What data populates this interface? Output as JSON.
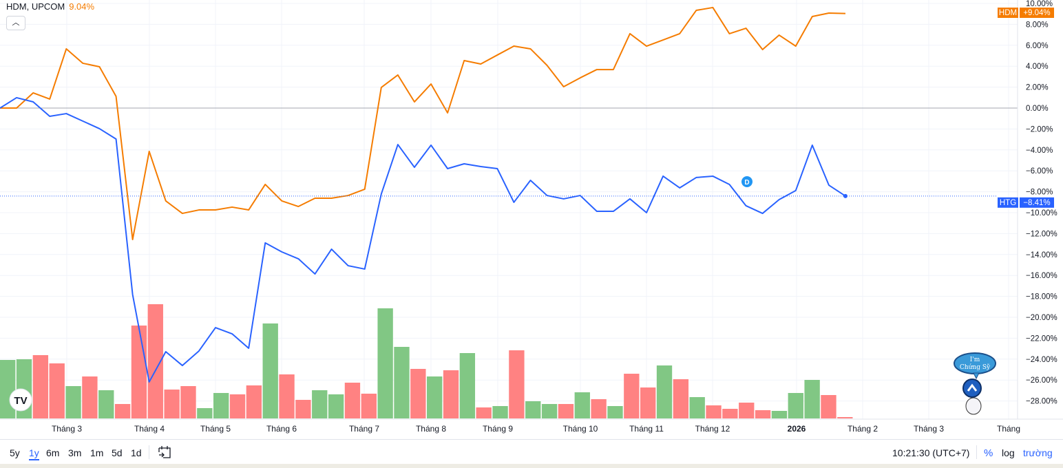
{
  "legend": {
    "symbol": "HDM, UPCOM",
    "change": "9.04%"
  },
  "collapse_icon": "chevron-up-icon",
  "colors": {
    "hdm": "#f57c00",
    "htg": "#2962ff",
    "vol_up": "#81c784",
    "vol_down": "#ff8282"
  },
  "price_labels": {
    "hdm_name": "HDM",
    "hdm_value": "+9.04%",
    "htg_name": "HTG",
    "htg_value": "−8.41%"
  },
  "event_marker": "D",
  "toolbar": {
    "ranges": [
      "5y",
      "1y",
      "6m",
      "3m",
      "1m",
      "5d",
      "1d"
    ],
    "active_range": "1y",
    "time": "10:21:30 (UTC+7)",
    "percent": "%",
    "log": "log",
    "auto": "trường"
  },
  "mascot_text": "I'm Chứng Sỹ",
  "chart_data": {
    "type": "line",
    "yaxis": {
      "unit": "%",
      "ticks": [
        "10.00%",
        "8.00%",
        "6.00%",
        "4.00%",
        "2.00%",
        "0.00%",
        "−2.00%",
        "−4.00%",
        "−6.00%",
        "−8.00%",
        "−10.00%",
        "−12.00%",
        "−14.00%",
        "−16.00%",
        "−18.00%",
        "−20.00%",
        "−22.00%",
        "−24.00%",
        "−26.00%",
        "−28.00%"
      ],
      "range": [
        -30,
        10
      ]
    },
    "xaxis": {
      "ticks": [
        "Tháng 3",
        "Tháng 4",
        "Tháng 5",
        "Tháng 6",
        "Tháng 7",
        "Tháng 8",
        "Tháng 9",
        "Tháng 10",
        "Tháng 11",
        "Tháng 12",
        "2026",
        "Tháng 2",
        "Tháng 3",
        "Tháng"
      ]
    },
    "series": [
      {
        "name": "HDM",
        "values": [
          0,
          0,
          1.45,
          0.86,
          5.66,
          4.28,
          3.95,
          1.12,
          -12.57,
          -4.14,
          -8.88,
          -10.07,
          -9.74,
          -9.74,
          -9.47,
          -9.74,
          -7.3,
          -8.88,
          -9.41,
          -8.62,
          -8.62,
          -8.36,
          -7.76,
          1.97,
          3.16,
          0.59,
          2.3,
          -0.46,
          4.54,
          4.21,
          5.07,
          5.92,
          5.66,
          4.08,
          2.04,
          2.89,
          3.68,
          3.68,
          7.11,
          5.92,
          6.51,
          7.11,
          9.34,
          9.61,
          7.11,
          7.63,
          5.59,
          6.97,
          5.92,
          8.75,
          9.08,
          9.04
        ]
      },
      {
        "name": "HTG",
        "values": [
          0,
          0.99,
          0.59,
          -0.79,
          -0.53,
          -1.25,
          -1.97,
          -2.96,
          -17.83,
          -26.18,
          -23.29,
          -24.61,
          -23.22,
          -20.99,
          -21.58,
          -22.96,
          -12.89,
          -13.75,
          -14.41,
          -15.86,
          -13.49,
          -15.07,
          -15.39,
          -8.22,
          -3.49,
          -5.66,
          -3.55,
          -5.79,
          -5.33,
          -5.59,
          -5.79,
          -9.01,
          -6.91,
          -8.36,
          -8.68,
          -8.36,
          -9.87,
          -9.87,
          -8.68,
          -10.0,
          -6.51,
          -7.63,
          -6.64,
          -6.51,
          -7.3,
          -9.34,
          -10.07,
          -8.75,
          -7.89,
          -3.55,
          -7.37,
          -8.41
        ]
      }
    ],
    "volume": {
      "unit": "relative",
      "values": [
        85,
        86,
        92,
        80,
        47,
        61,
        41,
        21,
        135,
        166,
        42,
        47,
        15,
        37,
        35,
        48,
        138,
        64,
        27,
        41,
        35,
        52,
        36,
        160,
        104,
        72,
        61,
        70,
        95,
        16,
        18,
        99,
        25,
        21,
        21,
        38,
        28,
        18,
        65,
        45,
        77,
        57,
        31,
        19,
        14,
        23,
        12,
        11,
        37,
        56,
        34,
        2
      ],
      "direction": [
        "up",
        "up",
        "down",
        "down",
        "up",
        "down",
        "up",
        "down",
        "down",
        "down",
        "down",
        "down",
        "up",
        "up",
        "down",
        "down",
        "up",
        "down",
        "down",
        "up",
        "up",
        "down",
        "down",
        "up",
        "up",
        "down",
        "up",
        "down",
        "up",
        "down",
        "up",
        "down",
        "up",
        "up",
        "down",
        "up",
        "down",
        "up",
        "down",
        "down",
        "up",
        "down",
        "up",
        "down",
        "down",
        "down",
        "down",
        "up",
        "up",
        "up",
        "down",
        "down"
      ]
    }
  }
}
